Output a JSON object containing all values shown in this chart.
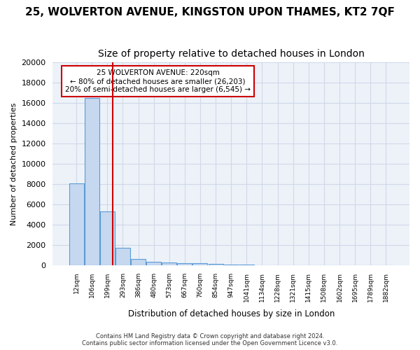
{
  "title": "25, WOLVERTON AVENUE, KINGSTON UPON THAMES, KT2 7QF",
  "subtitle": "Size of property relative to detached houses in London",
  "xlabel": "Distribution of detached houses by size in London",
  "ylabel": "Number of detached properties",
  "bar_labels": [
    "12sqm",
    "106sqm",
    "199sqm",
    "293sqm",
    "386sqm",
    "480sqm",
    "573sqm",
    "667sqm",
    "760sqm",
    "854sqm",
    "947sqm",
    "1041sqm",
    "1134sqm",
    "1228sqm",
    "1321sqm",
    "1415sqm",
    "1508sqm",
    "1602sqm",
    "1695sqm",
    "1789sqm",
    "1882sqm"
  ],
  "bar_values": [
    8100,
    16500,
    5300,
    1700,
    650,
    350,
    280,
    200,
    200,
    170,
    80,
    50,
    35,
    25,
    20,
    15,
    10,
    8,
    5,
    5,
    3
  ],
  "bar_color": "#c5d8ef",
  "bar_edge_color": "#5b9bd5",
  "grid_color": "#d0d8e8",
  "background_color": "#edf2f9",
  "vline_x": 2.33,
  "vline_color": "#cc0000",
  "annotation_text": "25 WOLVERTON AVENUE: 220sqm\n← 80% of detached houses are smaller (26,203)\n20% of semi-detached houses are larger (6,545) →",
  "annotation_box_color": "#cc0000",
  "ylim": [
    0,
    20000
  ],
  "yticks": [
    0,
    2000,
    4000,
    6000,
    8000,
    10000,
    12000,
    14000,
    16000,
    18000,
    20000
  ],
  "footer_line1": "Contains HM Land Registry data © Crown copyright and database right 2024.",
  "footer_line2": "Contains public sector information licensed under the Open Government Licence v3.0.",
  "title_fontsize": 11,
  "subtitle_fontsize": 10
}
